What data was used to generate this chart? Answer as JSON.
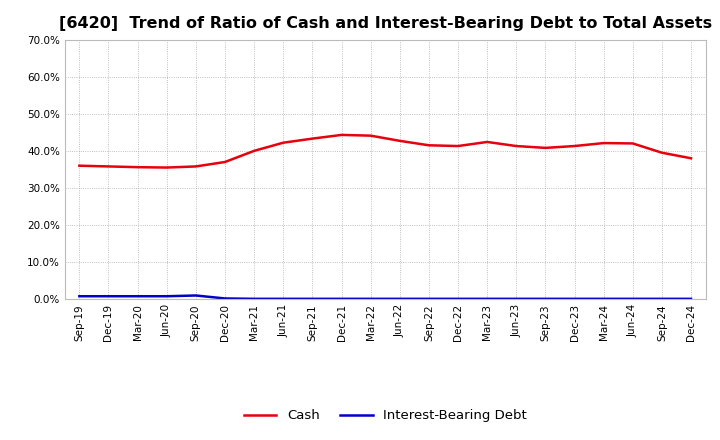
{
  "title": "[6420]  Trend of Ratio of Cash and Interest-Bearing Debt to Total Assets",
  "x_labels": [
    "Sep-19",
    "Dec-19",
    "Mar-20",
    "Jun-20",
    "Sep-20",
    "Dec-20",
    "Mar-21",
    "Jun-21",
    "Sep-21",
    "Dec-21",
    "Mar-22",
    "Jun-22",
    "Sep-22",
    "Dec-22",
    "Mar-23",
    "Jun-23",
    "Sep-23",
    "Dec-23",
    "Mar-24",
    "Jun-24",
    "Sep-24",
    "Dec-24"
  ],
  "cash": [
    0.36,
    0.358,
    0.356,
    0.355,
    0.358,
    0.37,
    0.4,
    0.422,
    0.433,
    0.443,
    0.441,
    0.427,
    0.415,
    0.413,
    0.424,
    0.413,
    0.408,
    0.413,
    0.421,
    0.42,
    0.395,
    0.38
  ],
  "interest_bearing_debt": [
    0.008,
    0.008,
    0.008,
    0.008,
    0.01,
    0.002,
    0.001,
    0.001,
    0.001,
    0.001,
    0.001,
    0.001,
    0.001,
    0.001,
    0.001,
    0.001,
    0.001,
    0.001,
    0.001,
    0.001,
    0.001,
    0.001
  ],
  "cash_color": "#e8000d",
  "debt_color": "#0000cc",
  "ylim": [
    0.0,
    0.7
  ],
  "yticks": [
    0.0,
    0.1,
    0.2,
    0.3,
    0.4,
    0.5,
    0.6,
    0.7
  ],
  "background_color": "#ffffff",
  "plot_bg_color": "#ffffff",
  "grid_color": "#aaaaaa",
  "title_fontsize": 11.5,
  "legend_fontsize": 9.5,
  "tick_fontsize": 7.5,
  "line_width": 1.8
}
